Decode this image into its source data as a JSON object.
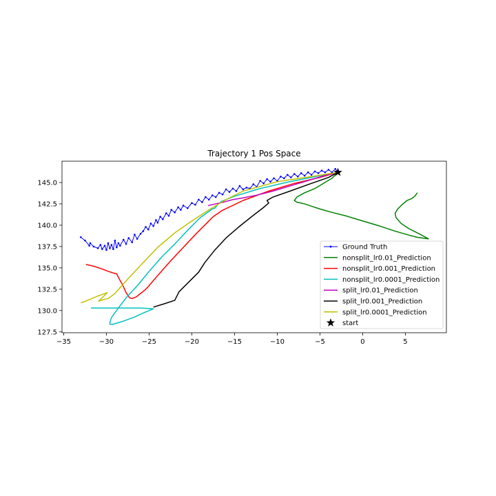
{
  "chart_data": {
    "type": "line",
    "title": "Trajectory 1 Pos Space",
    "xlabel": "",
    "ylabel": "",
    "xlim": [
      -35.2,
      9.8
    ],
    "ylim": [
      127.4,
      147.5
    ],
    "xticks": [
      -35,
      -30,
      -25,
      -20,
      -15,
      -10,
      -5,
      0,
      5
    ],
    "xtick_labels": [
      "−35",
      "−30",
      "−25",
      "−20",
      "−15",
      "−10",
      "−5",
      "0",
      "5"
    ],
    "yticks": [
      127.5,
      130.0,
      132.5,
      135.0,
      137.5,
      140.0,
      142.5,
      145.0
    ],
    "ytick_labels": [
      "127.5",
      "130.0",
      "132.5",
      "135.0",
      "137.5",
      "140.0",
      "142.5",
      "145.0"
    ],
    "grid": false,
    "legend_position": "lower-right",
    "series": [
      {
        "name": "Ground Truth",
        "color": "#0000ff",
        "marker": "dot",
        "x": [
          -33.0,
          -32.5,
          -32.0,
          -31.9,
          -31.5,
          -31.0,
          -30.7,
          -30.5,
          -30.2,
          -30.0,
          -29.8,
          -29.6,
          -29.4,
          -29.2,
          -29.0,
          -28.8,
          -28.6,
          -28.4,
          -28.0,
          -27.7,
          -27.4,
          -27.0,
          -26.7,
          -26.4,
          -26.0,
          -25.7,
          -25.4,
          -25.1,
          -24.8,
          -24.5,
          -24.2,
          -24.0,
          -23.7,
          -23.4,
          -23.0,
          -22.7,
          -22.4,
          -22.0,
          -21.6,
          -21.3,
          -21.0,
          -20.5,
          -20.0,
          -19.6,
          -19.2,
          -18.8,
          -18.4,
          -18.0,
          -17.6,
          -17.2,
          -16.8,
          -16.4,
          -16.0,
          -15.6,
          -15.2,
          -14.8,
          -14.4,
          -14.0,
          -13.6,
          -13.2,
          -12.8,
          -12.4,
          -12.0,
          -11.6,
          -11.2,
          -10.8,
          -10.4,
          -10.0,
          -9.6,
          -9.2,
          -8.8,
          -8.4,
          -8.0,
          -7.6,
          -7.2,
          -6.8,
          -6.4,
          -6.0,
          -5.6,
          -5.2,
          -4.8,
          -4.4,
          -4.0,
          -3.6,
          -3.2,
          -2.9
        ],
        "y": [
          138.6,
          138.2,
          137.6,
          137.9,
          137.5,
          137.3,
          137.7,
          137.2,
          137.6,
          137.1,
          137.9,
          137.3,
          137.7,
          137.2,
          138.2,
          137.4,
          137.9,
          137.6,
          138.3,
          137.8,
          138.5,
          138.0,
          138.9,
          138.4,
          139.0,
          139.3,
          139.8,
          139.5,
          140.2,
          139.9,
          140.6,
          140.3,
          141.0,
          140.7,
          141.4,
          141.1,
          141.8,
          141.5,
          142.1,
          141.8,
          142.3,
          142.0,
          142.6,
          142.4,
          143.0,
          142.7,
          143.3,
          143.0,
          143.5,
          143.3,
          143.8,
          143.6,
          144.2,
          143.9,
          144.3,
          144.0,
          144.6,
          144.2,
          144.4,
          144.3,
          144.8,
          144.5,
          145.2,
          144.9,
          145.4,
          145.1,
          145.5,
          145.2,
          145.7,
          145.5,
          145.9,
          145.6,
          146.0,
          145.7,
          146.1,
          145.8,
          146.2,
          145.9,
          146.3,
          146.1,
          146.4,
          146.2,
          146.5,
          146.2,
          146.6,
          146.2
        ]
      },
      {
        "name": "nonsplit_lr0.01_Prediction",
        "color": "#008000",
        "x": [
          -2.9,
          -3.6,
          -4.6,
          -5.6,
          -6.8,
          -7.7,
          -8.0,
          -7.7,
          -6.8,
          -5.9,
          -5.0,
          -3.6,
          -2.0,
          0.0,
          2.0,
          3.8,
          5.2,
          6.3,
          7.0,
          7.7,
          6.8,
          5.4,
          4.5,
          3.9,
          3.8,
          4.1,
          4.6,
          5.2,
          5.7,
          6.1,
          6.4
        ],
        "y": [
          146.2,
          145.5,
          144.9,
          144.3,
          143.8,
          143.3,
          142.9,
          142.7,
          142.5,
          142.2,
          141.9,
          141.5,
          141.1,
          140.5,
          139.9,
          139.3,
          138.9,
          138.6,
          138.5,
          138.4,
          138.9,
          139.6,
          140.2,
          140.9,
          141.4,
          141.9,
          142.4,
          142.9,
          143.1,
          143.4,
          143.8
        ]
      },
      {
        "name": "nonsplit_lr0.001_Prediction",
        "color": "#ff0000",
        "x": [
          -2.9,
          -5.0,
          -8.0,
          -11.0,
          -14.0,
          -16.5,
          -17.5,
          -18.2,
          -19.5,
          -21.0,
          -22.5,
          -24.0,
          -25.2,
          -25.5,
          -26.0,
          -26.5,
          -27.0,
          -27.3,
          -27.7,
          -28.1,
          -28.5,
          -28.8,
          -29.2,
          -29.8,
          -30.6,
          -31.5,
          -32.4
        ],
        "y": [
          146.2,
          145.6,
          144.9,
          144.0,
          142.9,
          141.7,
          141.0,
          140.3,
          139.0,
          137.4,
          135.8,
          134.1,
          132.7,
          132.4,
          132.0,
          131.6,
          131.4,
          131.5,
          132.1,
          133.0,
          133.7,
          134.3,
          134.4,
          134.6,
          134.9,
          135.2,
          135.4
        ]
      },
      {
        "name": "nonsplit_lr0.0001_Prediction",
        "color": "#00bfbf",
        "x": [
          -2.9,
          -6.0,
          -9.0,
          -12.0,
          -15.0,
          -16.5,
          -17.0,
          -17.3,
          -17.6,
          -19.0,
          -20.5,
          -22.0,
          -23.5,
          -25.0,
          -26.3,
          -27.6,
          -28.6,
          -29.4,
          -29.6,
          -29.6,
          -29.2,
          -28.2,
          -26.8,
          -25.5,
          -24.5,
          -26.0,
          -28.0,
          -30.0,
          -31.8
        ],
        "y": [
          146.2,
          145.6,
          145.0,
          144.3,
          143.4,
          142.8,
          142.4,
          142.0,
          141.9,
          140.9,
          139.4,
          137.8,
          136.3,
          134.6,
          133.0,
          131.6,
          130.3,
          129.2,
          128.6,
          128.4,
          128.4,
          128.7,
          129.2,
          129.8,
          130.2,
          130.3,
          130.3,
          130.3,
          130.3
        ]
      },
      {
        "name": "split_lr0.01_Prediction",
        "color": "#bf00bf",
        "x": [
          -2.9,
          -4.5,
          -6.5,
          -8.5,
          -10.5,
          -12.5,
          -14.0,
          -15.2,
          -16.3,
          -17.2,
          -18.1
        ],
        "y": [
          146.2,
          145.8,
          145.2,
          144.6,
          144.0,
          143.5,
          143.2,
          143.0,
          142.7,
          142.5,
          142.3
        ]
      },
      {
        "name": "split_lr0.001_Prediction",
        "color": "#000000",
        "x": [
          -2.9,
          -4.0,
          -6.0,
          -8.5,
          -10.5,
          -11.2,
          -11.0,
          -11.7,
          -13.0,
          -14.5,
          -16.0,
          -17.3,
          -18.5,
          -19.2,
          -20.0,
          -21.0,
          -21.5,
          -22.0,
          -23.2,
          -24.5
        ],
        "y": [
          146.2,
          145.6,
          144.9,
          144.0,
          143.3,
          142.9,
          142.6,
          142.0,
          141.0,
          139.8,
          138.5,
          137.1,
          135.6,
          134.5,
          133.7,
          132.7,
          132.2,
          131.2,
          130.8,
          130.4
        ]
      },
      {
        "name": "split_lr0.0001_Prediction",
        "color": "#bfbf00",
        "x": [
          -2.9,
          -6.0,
          -10.0,
          -14.0,
          -16.0,
          -18.0,
          -20.0,
          -22.0,
          -24.0,
          -26.0,
          -27.5,
          -29.0,
          -29.8,
          -30.3,
          -30.9,
          -29.9,
          -31.0,
          -32.2,
          -33.0
        ],
        "y": [
          146.2,
          145.7,
          145.1,
          144.0,
          143.0,
          141.8,
          140.5,
          139.1,
          137.4,
          135.3,
          133.7,
          132.0,
          131.4,
          131.3,
          131.1,
          132.1,
          131.7,
          131.2,
          130.9
        ]
      }
    ],
    "start_marker": {
      "name": "start",
      "x": -2.9,
      "y": 146.2,
      "color": "#000000",
      "marker": "star"
    }
  }
}
